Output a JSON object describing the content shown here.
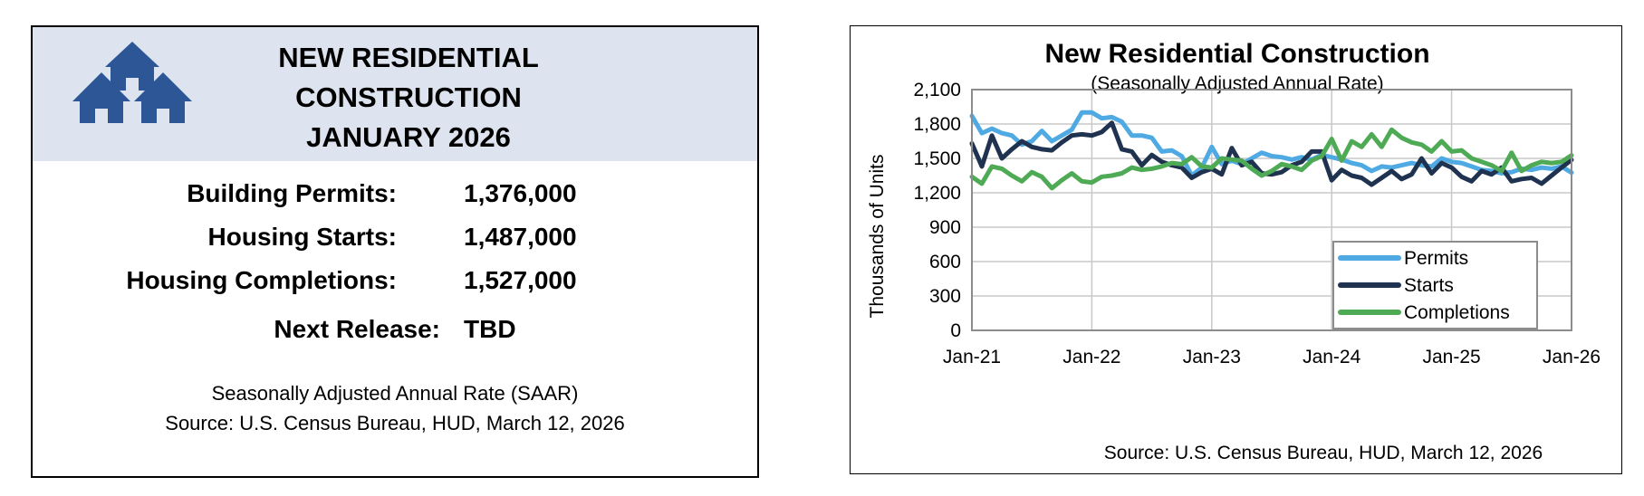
{
  "summary": {
    "title_lines": [
      "NEW RESIDENTIAL",
      "CONSTRUCTION",
      "JANUARY 2026"
    ],
    "stats": [
      {
        "label": "Building Permits:",
        "value": "1,376,000"
      },
      {
        "label": "Housing Starts:",
        "value": "1,487,000"
      },
      {
        "label": "Housing Completions:",
        "value": "1,527,000"
      }
    ],
    "next_release_label": "Next Release:",
    "next_release_value": "TBD",
    "saar_note": "Seasonally Adjusted Annual Rate (SAAR)",
    "source": "Source:  U.S. Census Bureau, HUD, March 12, 2026",
    "logo_icon": "houses-icon",
    "header_color": "#dde4ef",
    "logo_color": "#2d5697"
  },
  "chart_data": {
    "type": "line",
    "title": "New Residential Construction",
    "subtitle": "(Seasonally Adjusted Annual Rate)",
    "ylabel": "Thousands of Units",
    "xlabel": "",
    "source": "Source:  U.S. Census Bureau, HUD, March 12, 2026",
    "ylim": [
      0,
      2100
    ],
    "yticks": [
      0,
      300,
      600,
      900,
      1200,
      1500,
      1800,
      2100
    ],
    "ytick_labels": [
      "0",
      "300",
      "600",
      "900",
      "1,200",
      "1,500",
      "1,800",
      "2,100"
    ],
    "xticks": [
      "Jan-21",
      "Jan-22",
      "Jan-23",
      "Jan-24",
      "Jan-25",
      "Jan-26"
    ],
    "grid": true,
    "legend_position": "bottom-right",
    "x_start": "Jan-21",
    "x_end": "Jan-26",
    "series": [
      {
        "name": "Permits",
        "color": "#4fa9e2",
        "values": [
          1870,
          1720,
          1760,
          1720,
          1700,
          1620,
          1650,
          1740,
          1650,
          1700,
          1750,
          1900,
          1900,
          1850,
          1860,
          1820,
          1700,
          1700,
          1680,
          1560,
          1570,
          1520,
          1350,
          1420,
          1600,
          1450,
          1480,
          1450,
          1500,
          1550,
          1520,
          1510,
          1490,
          1510,
          1490,
          1530,
          1510,
          1490,
          1460,
          1440,
          1390,
          1430,
          1420,
          1440,
          1460,
          1440,
          1430,
          1500,
          1470,
          1460,
          1430,
          1400,
          1390,
          1370,
          1380,
          1410,
          1400,
          1420,
          1410,
          1430,
          1376
        ]
      },
      {
        "name": "Starts",
        "color": "#1f3350",
        "values": [
          1630,
          1430,
          1700,
          1500,
          1580,
          1650,
          1600,
          1580,
          1570,
          1640,
          1700,
          1710,
          1700,
          1730,
          1810,
          1580,
          1560,
          1440,
          1530,
          1470,
          1440,
          1420,
          1330,
          1380,
          1410,
          1360,
          1590,
          1440,
          1470,
          1370,
          1360,
          1380,
          1440,
          1470,
          1560,
          1560,
          1310,
          1400,
          1350,
          1330,
          1270,
          1330,
          1390,
          1320,
          1360,
          1500,
          1370,
          1460,
          1420,
          1340,
          1300,
          1390,
          1360,
          1420,
          1300,
          1320,
          1330,
          1280,
          1350,
          1420,
          1487
        ]
      },
      {
        "name": "Completions",
        "color": "#4faa55",
        "values": [
          1340,
          1280,
          1430,
          1410,
          1350,
          1300,
          1380,
          1340,
          1240,
          1310,
          1370,
          1300,
          1290,
          1340,
          1350,
          1370,
          1420,
          1400,
          1410,
          1430,
          1460,
          1450,
          1510,
          1430,
          1420,
          1500,
          1490,
          1480,
          1410,
          1350,
          1390,
          1450,
          1430,
          1400,
          1480,
          1520,
          1670,
          1480,
          1650,
          1600,
          1710,
          1600,
          1750,
          1680,
          1640,
          1620,
          1560,
          1650,
          1560,
          1570,
          1500,
          1470,
          1440,
          1390,
          1550,
          1390,
          1440,
          1470,
          1460,
          1470,
          1527
        ]
      }
    ]
  }
}
